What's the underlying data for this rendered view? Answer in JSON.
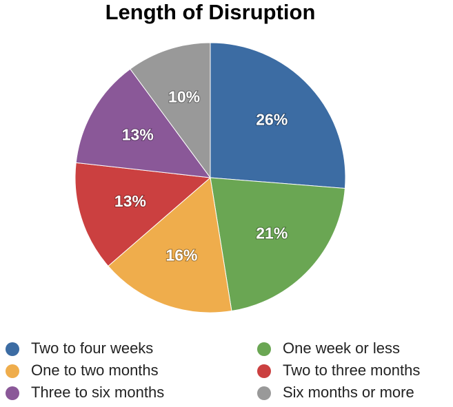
{
  "chart_data": {
    "type": "pie",
    "title": "Length of Disruption",
    "categories": [
      "Two to four weeks",
      "One week or less",
      "One to two months",
      "Two to three months",
      "Three to six months",
      "Six months or more"
    ],
    "values": [
      26,
      21,
      16,
      13,
      13,
      10
    ],
    "value_labels": [
      "26%",
      "21%",
      "16%",
      "13%",
      "13%",
      "10%"
    ],
    "colors": [
      "#3c6ca3",
      "#6aa653",
      "#efad4c",
      "#cb4040",
      "#8a5898",
      "#999999"
    ],
    "legend": "bottom"
  }
}
